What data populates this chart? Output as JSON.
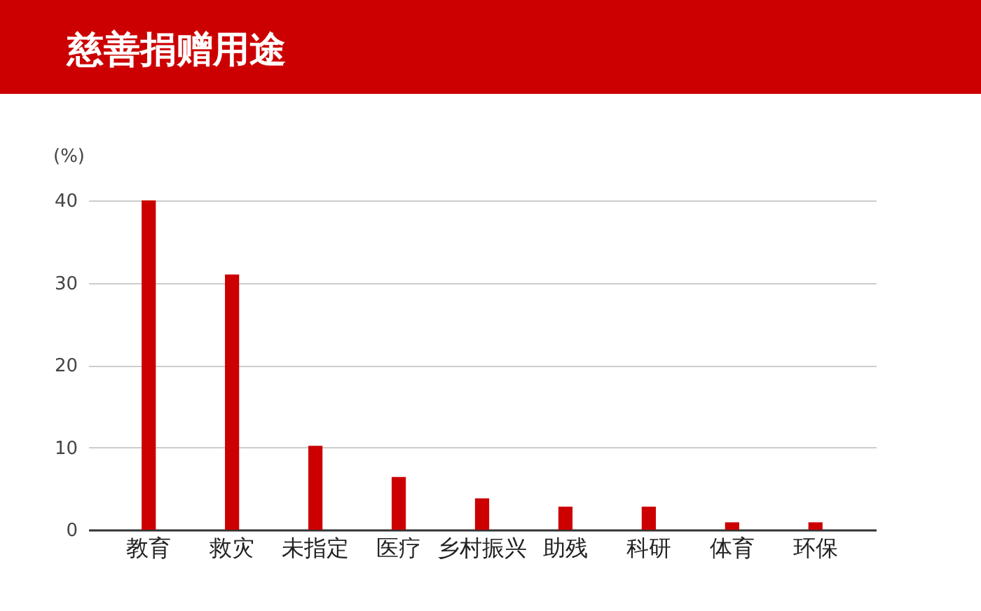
{
  "chart_data": {
    "type": "bar",
    "title": "慈善捐赠用途",
    "ylabel": "(%)",
    "categories": [
      "教育",
      "救灾",
      "未指定",
      "医疗",
      "乡村振兴",
      "助残",
      "科研",
      "体育",
      "环保"
    ],
    "values": [
      40,
      31,
      10.2,
      6.4,
      3.8,
      2.8,
      2.8,
      0.9,
      0.9
    ],
    "color": "#cc0000",
    "ylim": [
      0,
      40
    ],
    "yticks": [
      0,
      10,
      20,
      30,
      40
    ],
    "grid": "y"
  }
}
